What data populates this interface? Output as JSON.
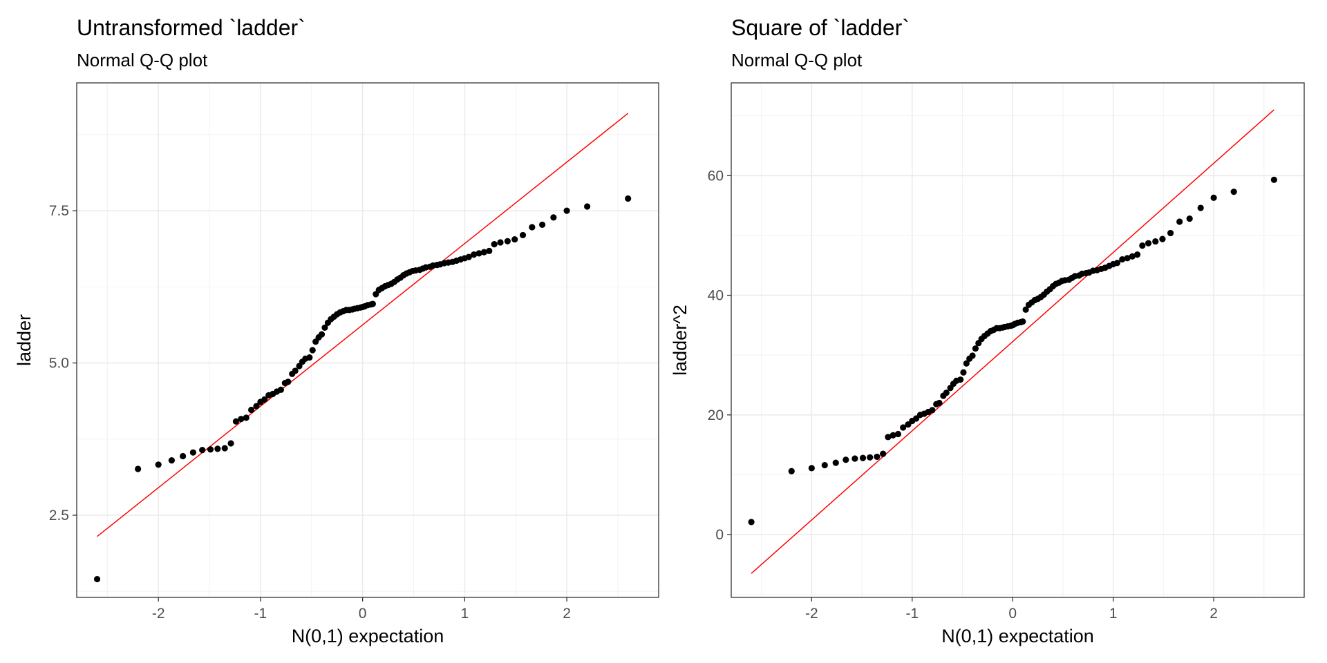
{
  "chart_data": [
    {
      "type": "scatter",
      "title": "Untransformed `ladder`",
      "subtitle": "Normal Q-Q plot",
      "xlabel": "N(0,1) expectation",
      "ylabel": "ladder",
      "xlim": [
        -2.8,
        2.9
      ],
      "ylim": [
        1.15,
        9.6
      ],
      "xticks": [
        -2,
        -1,
        0,
        1,
        2
      ],
      "xtick_labels": [
        "-2",
        "-1",
        "0",
        "1",
        "2"
      ],
      "yticks": [
        2.5,
        5.0,
        7.5
      ],
      "ytick_labels": [
        "2.5",
        "5.0",
        "7.5"
      ],
      "grid": true,
      "points": {
        "x": [
          -2.6,
          -2.2,
          -2.0,
          -1.87,
          -1.76,
          -1.66,
          -1.57,
          -1.49,
          -1.42,
          -1.35,
          -1.29,
          -1.24,
          -1.19,
          -1.14,
          -1.09,
          -1.04,
          -1.0,
          -0.96,
          -0.92,
          -0.88,
          -0.84,
          -0.8,
          -0.76,
          -0.73,
          -0.69,
          -0.66,
          -0.62,
          -0.59,
          -0.56,
          -0.52,
          -0.49,
          -0.46,
          -0.43,
          -0.4,
          -0.37,
          -0.34,
          -0.31,
          -0.28,
          -0.25,
          -0.22,
          -0.19,
          -0.16,
          -0.13,
          -0.1,
          -0.08,
          -0.05,
          -0.02,
          0.0,
          0.02,
          0.05,
          0.08,
          0.1,
          0.13,
          0.16,
          0.19,
          0.22,
          0.25,
          0.28,
          0.31,
          0.34,
          0.37,
          0.4,
          0.43,
          0.46,
          0.49,
          0.52,
          0.56,
          0.59,
          0.62,
          0.66,
          0.69,
          0.73,
          0.76,
          0.8,
          0.84,
          0.88,
          0.92,
          0.96,
          1.0,
          1.04,
          1.09,
          1.14,
          1.19,
          1.24,
          1.29,
          1.35,
          1.42,
          1.49,
          1.57,
          1.66,
          1.76,
          1.87,
          2.0,
          2.2,
          2.6
        ],
        "y": [
          1.45,
          3.26,
          3.33,
          3.4,
          3.47,
          3.53,
          3.57,
          3.58,
          3.59,
          3.6,
          3.68,
          4.04,
          4.08,
          4.1,
          4.23,
          4.29,
          4.36,
          4.4,
          4.47,
          4.49,
          4.53,
          4.56,
          4.67,
          4.69,
          4.82,
          4.87,
          4.95,
          5.02,
          5.07,
          5.09,
          5.21,
          5.35,
          5.42,
          5.47,
          5.58,
          5.66,
          5.72,
          5.76,
          5.8,
          5.83,
          5.85,
          5.87,
          5.87,
          5.88,
          5.89,
          5.9,
          5.91,
          5.92,
          5.93,
          5.95,
          5.96,
          5.97,
          6.13,
          6.2,
          6.23,
          6.26,
          6.28,
          6.3,
          6.33,
          6.37,
          6.4,
          6.44,
          6.47,
          6.49,
          6.51,
          6.52,
          6.53,
          6.55,
          6.57,
          6.58,
          6.6,
          6.61,
          6.62,
          6.64,
          6.65,
          6.66,
          6.68,
          6.7,
          6.72,
          6.74,
          6.78,
          6.8,
          6.82,
          6.84,
          6.95,
          6.98,
          7.0,
          7.03,
          7.1,
          7.23,
          7.27,
          7.39,
          7.5,
          7.57,
          7.7
        ]
      },
      "reference_line": {
        "x": [
          -2.6,
          2.6
        ],
        "y": [
          2.15,
          9.1
        ],
        "color": "#ff0000"
      },
      "point_color": "#000000"
    },
    {
      "type": "scatter",
      "title": "Square of `ladder`",
      "subtitle": "Normal Q-Q plot",
      "xlabel": "N(0,1) expectation",
      "ylabel": "ladder^2",
      "xlim": [
        -2.8,
        2.9
      ],
      "ylim": [
        -10.5,
        75.5
      ],
      "xticks": [
        -2,
        -1,
        0,
        1,
        2
      ],
      "xtick_labels": [
        "-2",
        "-1",
        "0",
        "1",
        "2"
      ],
      "yticks": [
        0,
        20,
        40,
        60
      ],
      "ytick_labels": [
        "0",
        "20",
        "40",
        "60"
      ],
      "grid": true,
      "points": {
        "x": [
          -2.6,
          -2.2,
          -2.0,
          -1.87,
          -1.76,
          -1.66,
          -1.57,
          -1.49,
          -1.42,
          -1.35,
          -1.29,
          -1.24,
          -1.19,
          -1.14,
          -1.09,
          -1.04,
          -1.0,
          -0.96,
          -0.92,
          -0.88,
          -0.84,
          -0.8,
          -0.76,
          -0.73,
          -0.69,
          -0.66,
          -0.62,
          -0.59,
          -0.56,
          -0.52,
          -0.49,
          -0.46,
          -0.43,
          -0.4,
          -0.37,
          -0.34,
          -0.31,
          -0.28,
          -0.25,
          -0.22,
          -0.19,
          -0.16,
          -0.13,
          -0.1,
          -0.08,
          -0.05,
          -0.02,
          0.0,
          0.02,
          0.05,
          0.08,
          0.1,
          0.13,
          0.16,
          0.19,
          0.22,
          0.25,
          0.28,
          0.31,
          0.34,
          0.37,
          0.4,
          0.43,
          0.46,
          0.49,
          0.52,
          0.56,
          0.59,
          0.62,
          0.66,
          0.69,
          0.73,
          0.76,
          0.8,
          0.84,
          0.88,
          0.92,
          0.96,
          1.0,
          1.04,
          1.09,
          1.14,
          1.19,
          1.24,
          1.29,
          1.35,
          1.42,
          1.49,
          1.57,
          1.66,
          1.76,
          1.87,
          2.0,
          2.2,
          2.6
        ],
        "y": [
          2.1,
          10.6,
          11.1,
          11.6,
          12.0,
          12.5,
          12.7,
          12.8,
          12.9,
          13.0,
          13.5,
          16.3,
          16.6,
          16.8,
          17.9,
          18.4,
          19.0,
          19.4,
          20.0,
          20.2,
          20.5,
          20.8,
          21.8,
          22.0,
          23.2,
          23.7,
          24.5,
          25.2,
          25.7,
          25.9,
          27.1,
          28.6,
          29.4,
          29.9,
          31.1,
          32.0,
          32.7,
          33.2,
          33.6,
          34.0,
          34.2,
          34.5,
          34.5,
          34.6,
          34.7,
          34.8,
          34.9,
          35.0,
          35.2,
          35.4,
          35.5,
          35.6,
          37.6,
          38.4,
          38.8,
          39.2,
          39.4,
          39.7,
          40.1,
          40.6,
          41.0,
          41.5,
          41.9,
          42.1,
          42.4,
          42.5,
          42.6,
          42.9,
          43.2,
          43.3,
          43.6,
          43.7,
          43.8,
          44.1,
          44.2,
          44.4,
          44.6,
          44.9,
          45.2,
          45.4,
          46.0,
          46.2,
          46.5,
          46.8,
          48.3,
          48.7,
          49.0,
          49.4,
          50.4,
          52.3,
          52.8,
          54.6,
          56.3,
          57.3,
          59.3
        ]
      },
      "reference_line": {
        "x": [
          -2.6,
          2.6
        ],
        "y": [
          -6.5,
          71.0
        ],
        "color": "#ff0000"
      },
      "point_color": "#000000"
    }
  ]
}
